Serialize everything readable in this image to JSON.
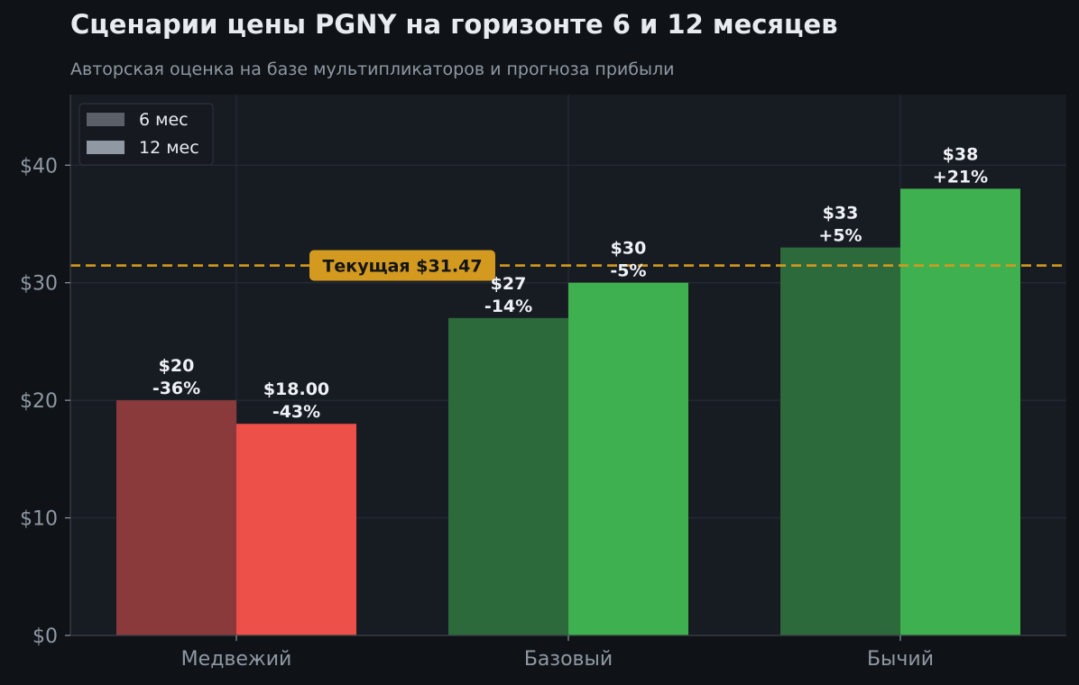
{
  "title": "Сценарии цены PGNY на горизонте 6 и 12 месяцев",
  "subtitle": "Авторская оценка на базе мультипликаторов и прогноза прибыли",
  "colors": {
    "page_bg": "#0f1317",
    "plot_bg": "#171b22",
    "grid": "#262b33",
    "bear_6m": "#8b3a3c",
    "bear_12m": "#ec5048",
    "bull_6m": "#2c6a3c",
    "bull_12m": "#3fb04f",
    "reference": "#d4991f",
    "legend_6m": "#5a5f68",
    "legend_12m": "#8f98a3"
  },
  "chart_data": {
    "type": "bar",
    "categories": [
      "Медвежий",
      "Базовый",
      "Бычий"
    ],
    "series": [
      {
        "name": "6 мес",
        "values": [
          20,
          27,
          33
        ],
        "labels": [
          "$20\n-36%",
          "$27\n-14%",
          "$33\n+5%"
        ]
      },
      {
        "name": "12 мес",
        "values": [
          18,
          30,
          38
        ],
        "labels": [
          "$18.00\n-43%",
          "$30\n-5%",
          "$38\n+21%"
        ]
      }
    ],
    "y_ticks": [
      0,
      10,
      20,
      30,
      40
    ],
    "y_tick_labels": [
      "$0",
      "$10",
      "$20",
      "$30",
      "$40"
    ],
    "ylim": [
      0,
      46
    ],
    "grid": true,
    "legend_position": "top-left",
    "reference_line": {
      "value": 31.47,
      "label": "Текущая $31.47"
    }
  }
}
